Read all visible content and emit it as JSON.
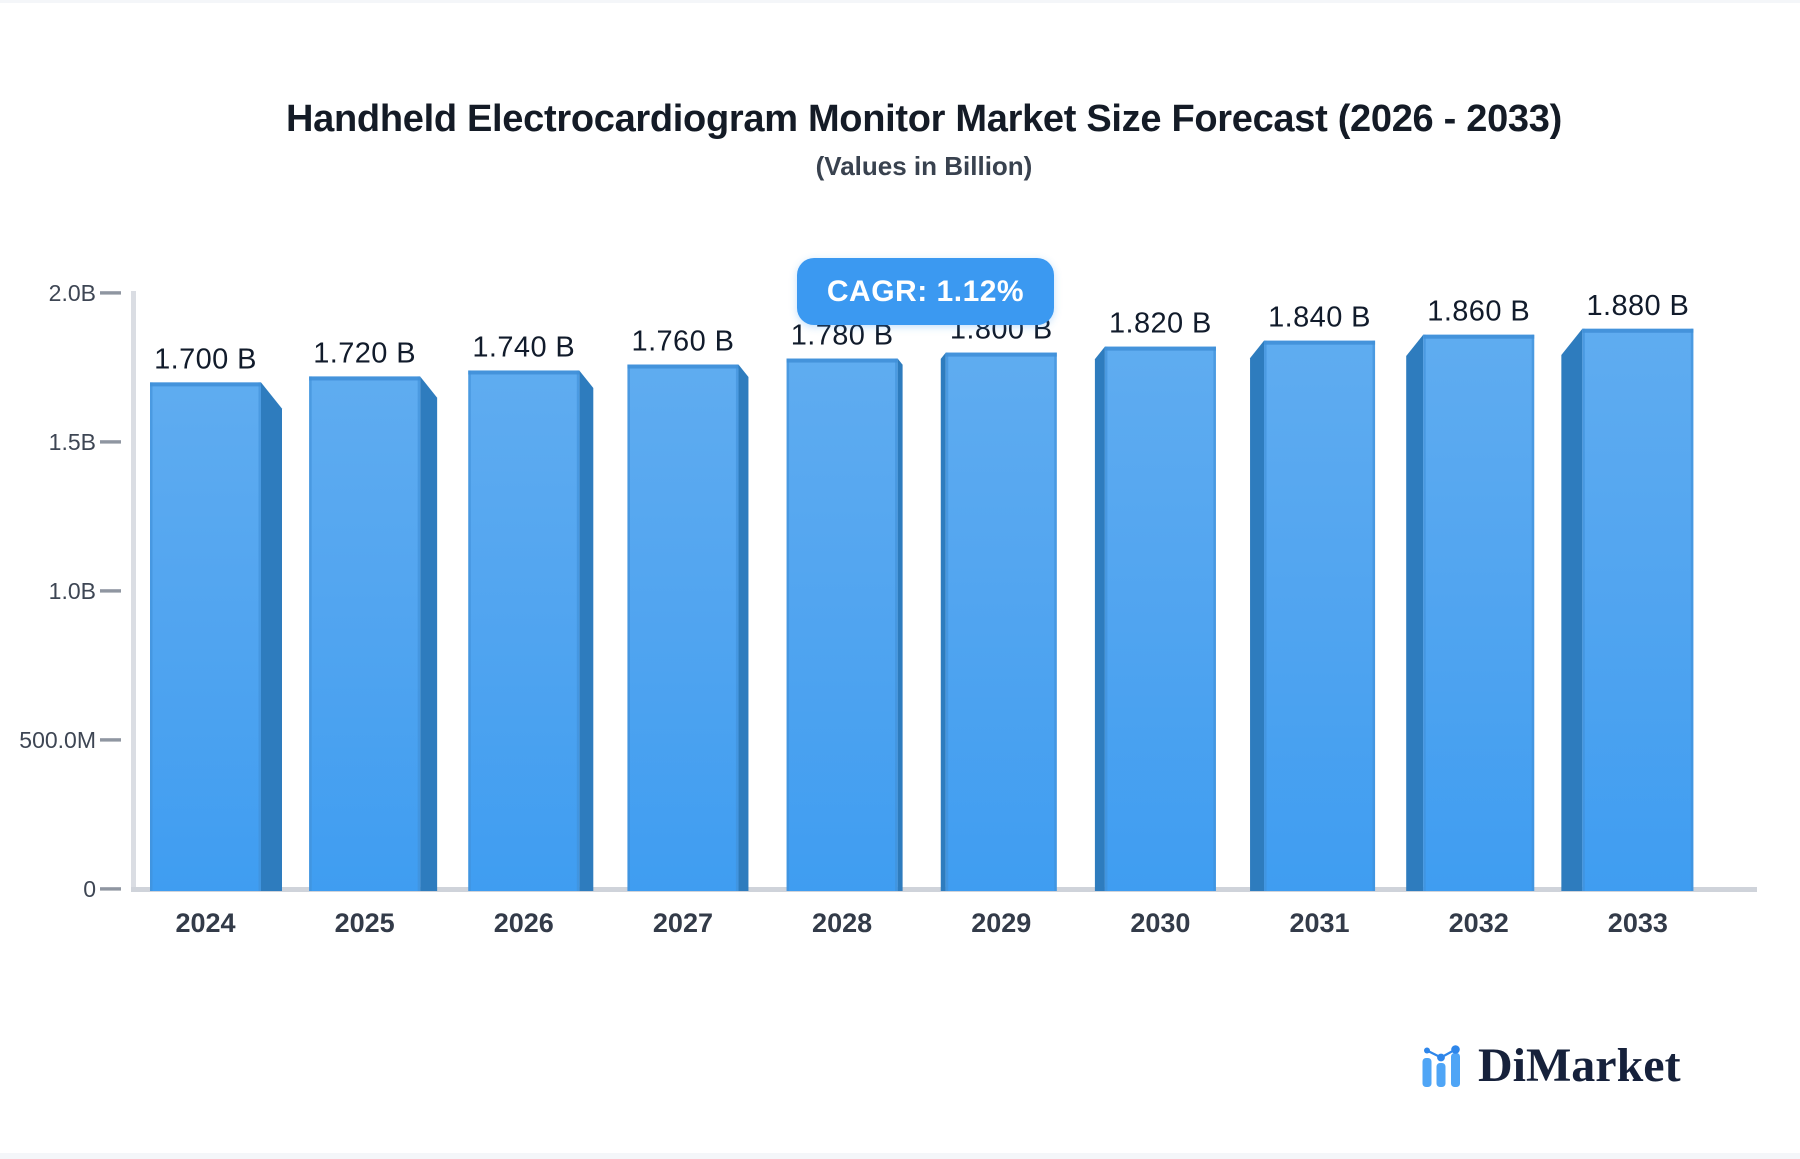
{
  "header": {
    "title": "Handheld Electrocardiogram Monitor Market Size Forecast (2026 - 2033)",
    "subtitle": "(Values in Billion)"
  },
  "badge": {
    "label": "CAGR: 1.12%",
    "background_color": "#3B99F1",
    "text_color": "#FFFFFF"
  },
  "chart_data": {
    "type": "bar",
    "title": "Handheld Electrocardiogram Monitor Market Size Forecast (2026 - 2033)",
    "subtitle": "(Values in Billion)",
    "categories": [
      "2024",
      "2025",
      "2026",
      "2027",
      "2028",
      "2029",
      "2030",
      "2031",
      "2032",
      "2033"
    ],
    "values": [
      1.7,
      1.72,
      1.74,
      1.76,
      1.78,
      1.8,
      1.82,
      1.84,
      1.86,
      1.88
    ],
    "value_labels": [
      "1.700 B",
      "1.720 B",
      "1.740 B",
      "1.760 B",
      "1.780 B",
      "1.800 B",
      "1.820 B",
      "1.840 B",
      "1.860 B",
      "1.880 B"
    ],
    "unit": "Billion",
    "cagr_annotation": "CAGR: 1.12%",
    "ylim": [
      0,
      2.0
    ],
    "yticks": [
      {
        "label": "0",
        "value": 0
      },
      {
        "label": "500.0M",
        "value": 0.5
      },
      {
        "label": "1.0B",
        "value": 1.0
      },
      {
        "label": "1.5B",
        "value": 1.5
      },
      {
        "label": "2.0B",
        "value": 2.0
      }
    ],
    "grid": false,
    "legend": false,
    "bar_color_top": "#5FACF0",
    "bar_color_bottom": "#3F9DF1",
    "bar_side_color": "#2E7CBE",
    "bar_top_edge_color": "#4493DB",
    "axis_line_color": "#D5D9DF",
    "tick_color": "#8F96A1"
  },
  "logo": {
    "text": "DiMarket",
    "icon": "bar-chart-logo-icon",
    "icon_bar_color": "#4FA5F6",
    "icon_dot_color": "#2E86EA",
    "text_color": "#16213B"
  }
}
